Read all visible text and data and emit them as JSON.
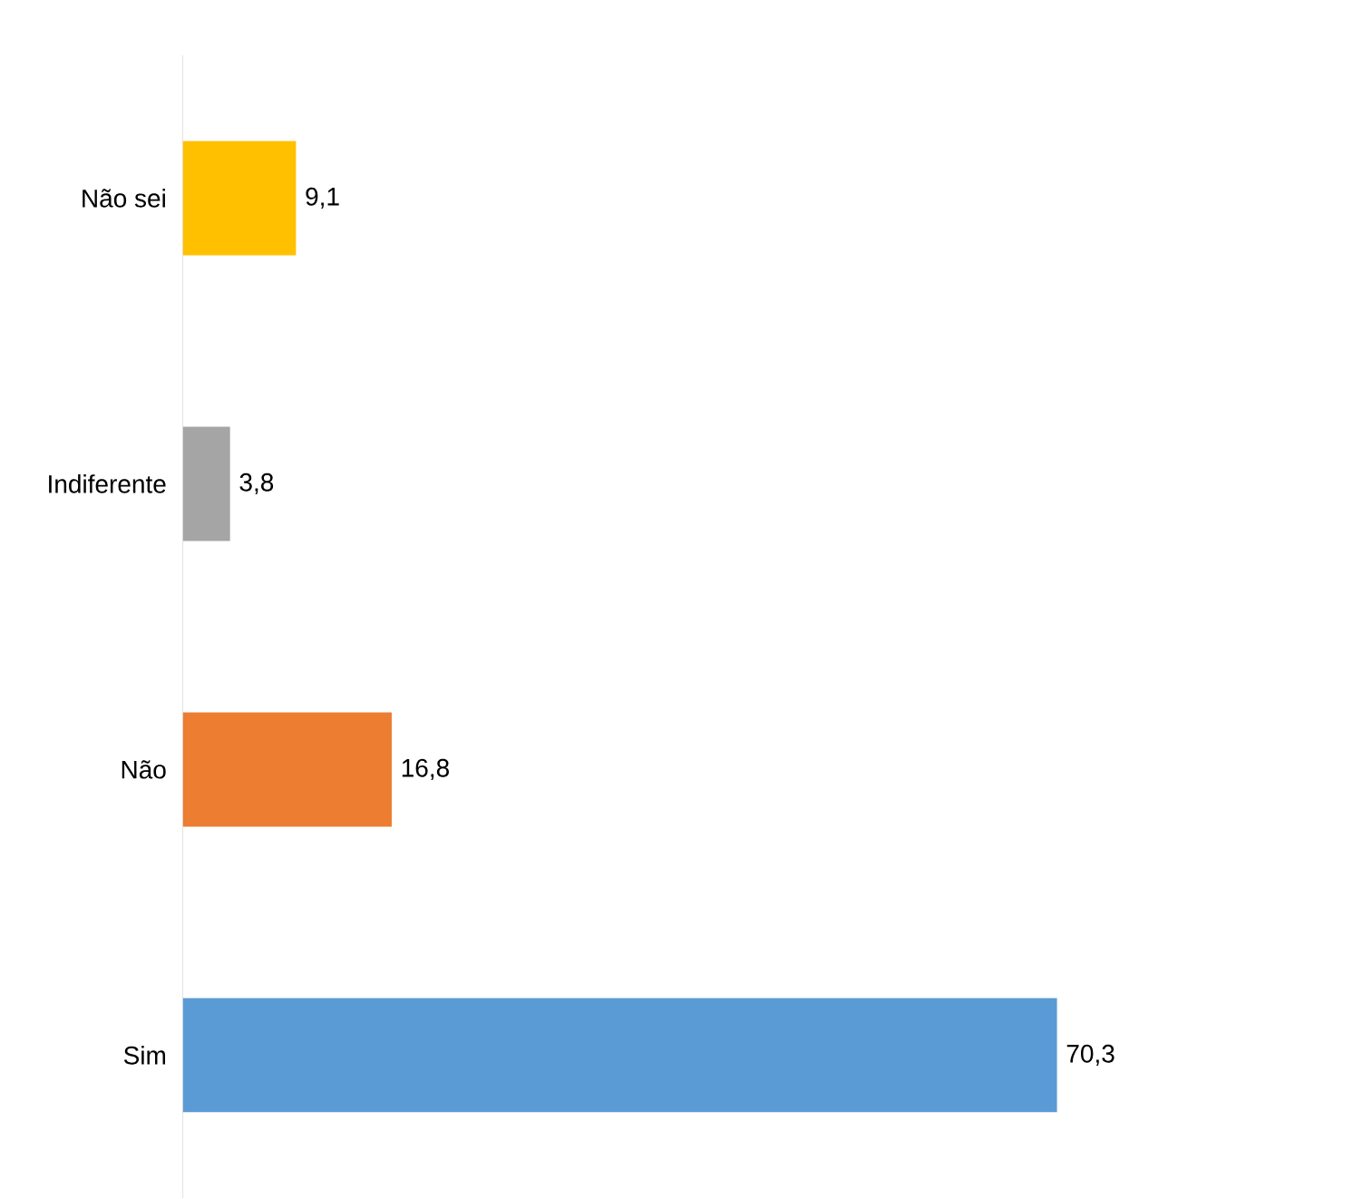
{
  "chart_data": {
    "type": "bar",
    "orientation": "horizontal",
    "categories": [
      "Não sei",
      "Indiferente",
      "Não",
      "Sim"
    ],
    "values": [
      9.1,
      3.8,
      16.8,
      70.3
    ],
    "colors": [
      "#ffc000",
      "#a5a5a5",
      "#ed7d31",
      "#5b9bd5"
    ],
    "value_labels": [
      "9,1",
      "3,8",
      "16,8",
      "70,3"
    ],
    "tick_labels": "y"
  }
}
